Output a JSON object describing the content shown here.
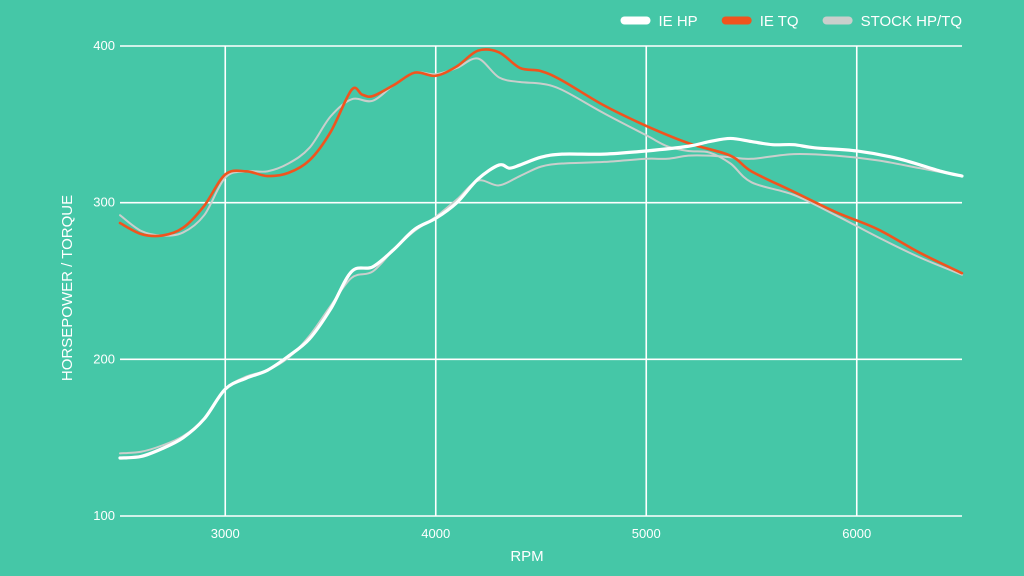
{
  "chart_data": {
    "type": "line",
    "title": "",
    "xlabel": "RPM",
    "ylabel": "HORSEPOWER / TORQUE",
    "xlim": [
      2500,
      6500
    ],
    "ylim": [
      100,
      400
    ],
    "xticks": [
      3000,
      4000,
      5000,
      6000
    ],
    "yticks": [
      100,
      200,
      300,
      400
    ],
    "grid": true,
    "legend_position": "top-right",
    "colors": {
      "background": "#45c7a7",
      "grid": "#ffffff",
      "ie_hp": "#ffffff",
      "ie_tq": "#f0541e",
      "stock": "#c9cfcc"
    },
    "legend": [
      {
        "label": "IE HP",
        "color": "#ffffff"
      },
      {
        "label": "IE TQ",
        "color": "#f0541e"
      },
      {
        "label": "STOCK HP/TQ",
        "color": "#c9cfcc"
      }
    ],
    "series": [
      {
        "name": "STOCK HP/TQ",
        "kind": "stock",
        "color": "#c9cfcc",
        "x": [
          2500,
          2600,
          2700,
          2800,
          2900,
          3000,
          3100,
          3200,
          3300,
          3400,
          3500,
          3600,
          3700,
          3800,
          3900,
          4000,
          4100,
          4200,
          4300,
          4400,
          4500,
          4600,
          4800,
          5000,
          5100,
          5200,
          5300,
          5400,
          5500,
          5700,
          5900,
          6100,
          6300,
          6500
        ],
        "values": [
          292,
          282,
          279,
          281,
          292,
          316,
          320,
          320,
          325,
          335,
          355,
          366,
          365,
          375,
          383,
          382,
          386,
          392,
          380,
          377,
          376,
          372,
          357,
          343,
          336,
          333,
          332,
          325,
          313,
          305,
          292,
          278,
          265,
          254
        ]
      },
      {
        "name": "STOCK HP/TQ",
        "kind": "stock",
        "color": "#c9cfcc",
        "x": [
          2500,
          2600,
          2700,
          2800,
          2900,
          3000,
          3100,
          3200,
          3300,
          3400,
          3500,
          3600,
          3700,
          3800,
          3900,
          4000,
          4100,
          4200,
          4300,
          4400,
          4500,
          4600,
          4800,
          5000,
          5100,
          5200,
          5300,
          5400,
          5500,
          5700,
          5900,
          6100,
          6300,
          6500
        ],
        "values": [
          140,
          141,
          145,
          151,
          162,
          181,
          189,
          193,
          201,
          215,
          234,
          252,
          256,
          270,
          282,
          291,
          302,
          314,
          311,
          317,
          323,
          325,
          326,
          328,
          328,
          330,
          330,
          329,
          328,
          331,
          330,
          327,
          322,
          317
        ]
      },
      {
        "name": "IE TQ",
        "kind": "ie_tq",
        "color": "#f0541e",
        "x": [
          2500,
          2600,
          2700,
          2800,
          2900,
          3000,
          3100,
          3200,
          3300,
          3400,
          3500,
          3600,
          3650,
          3700,
          3800,
          3900,
          4000,
          4100,
          4200,
          4300,
          4400,
          4500,
          4600,
          4800,
          5000,
          5200,
          5400,
          5500,
          5700,
          5900,
          6100,
          6300,
          6500
        ],
        "values": [
          287,
          280,
          279,
          284,
          298,
          318,
          320,
          317,
          319,
          327,
          345,
          372,
          369,
          368,
          375,
          383,
          381,
          387,
          397,
          396,
          386,
          384,
          378,
          362,
          349,
          338,
          330,
          320,
          307,
          294,
          283,
          268,
          255
        ]
      },
      {
        "name": "IE HP",
        "kind": "ie_hp",
        "color": "#ffffff",
        "x": [
          2500,
          2600,
          2700,
          2800,
          2900,
          3000,
          3100,
          3200,
          3300,
          3400,
          3500,
          3600,
          3700,
          3800,
          3900,
          4000,
          4100,
          4200,
          4300,
          4350,
          4400,
          4500,
          4600,
          4800,
          5000,
          5200,
          5300,
          5400,
          5500,
          5600,
          5700,
          5800,
          6000,
          6200,
          6400,
          6500
        ],
        "values": [
          137,
          138,
          143,
          150,
          162,
          181,
          188,
          193,
          202,
          213,
          232,
          256,
          259,
          270,
          283,
          290,
          300,
          315,
          324,
          322,
          324,
          329,
          331,
          331,
          333,
          336,
          339,
          341,
          339,
          337,
          337,
          335,
          333,
          328,
          320,
          317
        ]
      }
    ]
  }
}
